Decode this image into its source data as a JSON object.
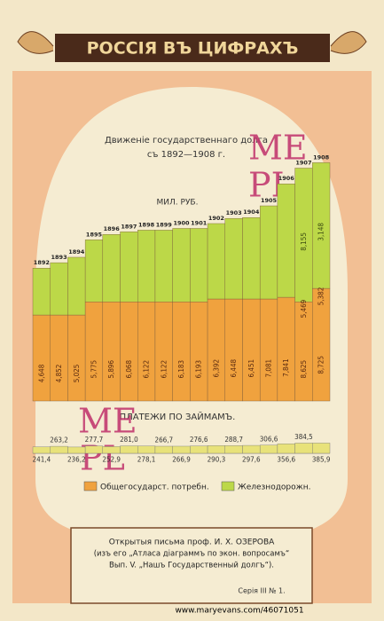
{
  "chart_data": {
    "type": "bar",
    "header": "РОССІЯ ВЪ ЦИФРАХЪ",
    "title": "Движеніе государственнаго долга",
    "subtitle": "съ 1892—1908 г.",
    "unit_label": "МИЛ. РУБ.",
    "categories": [
      "1892",
      "1893",
      "1894",
      "1895",
      "1896",
      "1897",
      "1898",
      "1899",
      "1900",
      "1901",
      "1902",
      "1903",
      "1904",
      "1905",
      "1906",
      "1907",
      "1908"
    ],
    "series": [
      {
        "name": "Общегосударст. потребн.",
        "color": "#f0a23e",
        "values": [
          3010,
          3010,
          3010,
          3470,
          3470,
          3470,
          3470,
          3470,
          3470,
          3470,
          3570,
          3570,
          3570,
          3570,
          3630,
          3470,
          3940
        ]
      },
      {
        "name": "Железнодорожн.",
        "color": "#bcd848",
        "values": [
          1640,
          1830,
          2020,
          2170,
          2360,
          2450,
          2510,
          2510,
          2570,
          2570,
          2640,
          2820,
          2850,
          3260,
          3970,
          4680,
          4400
        ]
      }
    ],
    "bar_labels": [
      "4,648",
      "4,852",
      "5,025",
      "5,775",
      "5,896",
      "6,068",
      "6,122",
      "6,122",
      "6,183",
      "6,193",
      "6,392",
      "6,448",
      "6,451",
      "7,081",
      "7,841",
      "8,625",
      "8,725"
    ],
    "upper_labels": [
      null,
      null,
      null,
      null,
      null,
      null,
      null,
      null,
      null,
      null,
      null,
      null,
      null,
      null,
      null,
      "5,469",
      "5,382"
    ],
    "green_labels": [
      null,
      null,
      null,
      null,
      null,
      null,
      null,
      null,
      null,
      null,
      null,
      null,
      null,
      null,
      null,
      "8,155",
      "3,148"
    ],
    "ylim": [
      0,
      8600
    ],
    "payments": {
      "title": "ПЛАТЕЖИ ПО ЗАЙМАМЪ.",
      "values": [
        241.4,
        263.2,
        236.2,
        277.7,
        252.9,
        281.0,
        278.1,
        266.7,
        266.9,
        276.6,
        290.3,
        288.7,
        297.6,
        306.6,
        356.6,
        384.5,
        385.9
      ],
      "value_labels": [
        "241,4",
        "263,2",
        "236,2",
        "277,7",
        "252,9",
        "281,0",
        "278,1",
        "266,7",
        "266,9",
        "276,6",
        "290,3",
        "288,7",
        "297,6",
        "306,6",
        "356,6",
        "384,5",
        "385,9"
      ],
      "ylim": [
        0,
        400
      ],
      "color": "#e8e27a"
    },
    "footer": {
      "line1": "Открытыя письма проф. И. Х. ОЗЕРОВА",
      "line2": "(изъ его „Атласа діаграммъ по экон. вопросамъ“",
      "line3": "Вып. V. „Нашъ Государственный долгъ“).",
      "series_no": "Серія III № 1.",
      "url": "www.maryevans.com/46071051"
    },
    "watermark": [
      "ME",
      "PL"
    ]
  }
}
